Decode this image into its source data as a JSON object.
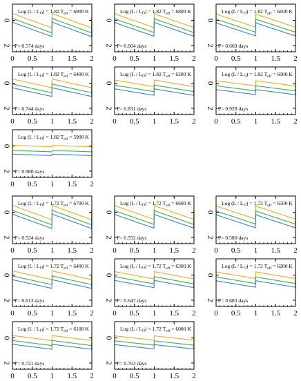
{
  "colors": {
    "orange": "#f5a623",
    "green": "#3cb043",
    "blue": "#3b7dd8"
  },
  "x_ticks": [
    "0",
    "0.5",
    "1",
    "1.5",
    "2"
  ],
  "y_ticks": [
    "0",
    "2"
  ],
  "chart_data": [
    {
      "type": "line",
      "label": "Log (L / L⊙) = 1.82 Tₑₒₒ = 6900 K",
      "title_pre": "Log (L / L",
      "title_mid": ") = 1.82 T",
      "title_sub": "eff",
      "title_post": " = 6900 K",
      "period": "P= 0.574 days",
      "amp": 1.0,
      "offsets": [
        0.0,
        0.4,
        0.7
      ],
      "xlim": [
        0,
        2
      ],
      "ylim": [
        2.5,
        -1.3
      ]
    },
    {
      "type": "line",
      "title_pre": "Log (L / L",
      "title_mid": ") = 1.82 T",
      "title_sub": "eff",
      "title_post": " = 6800 K",
      "period": "P= 0.604 days",
      "amp": 0.95,
      "offsets": [
        0.0,
        0.4,
        0.7
      ],
      "xlim": [
        0,
        2
      ],
      "ylim": [
        2.5,
        -1.3
      ]
    },
    {
      "type": "line",
      "title_pre": "Log (L / L",
      "title_mid": ") = 1.82 T",
      "title_sub": "eff",
      "title_post": " = 6600 K",
      "period": "P= 0.669 days",
      "amp": 0.9,
      "offsets": [
        0.0,
        0.4,
        0.7
      ],
      "xlim": [
        0,
        2
      ],
      "ylim": [
        2.5,
        -1.3
      ]
    },
    {
      "type": "line",
      "title_pre": "Log (L / L",
      "title_mid": ") = 1.82 T",
      "title_sub": "eff",
      "title_post": " = 6400 K",
      "period": "P= 0.744 days",
      "amp": 0.6,
      "offsets": [
        0.0,
        0.4,
        0.7
      ],
      "xlim": [
        0,
        2
      ],
      "ylim": [
        2.5,
        -1.3
      ]
    },
    {
      "type": "line",
      "title_pre": "Log (L / L",
      "title_mid": ") = 1.82 T",
      "title_sub": "eff",
      "title_post": " = 6200 K",
      "period": "P= 0.831 days",
      "amp": 0.45,
      "offsets": [
        0.0,
        0.4,
        0.7
      ],
      "xlim": [
        0,
        2
      ],
      "ylim": [
        2.5,
        -1.3
      ]
    },
    {
      "type": "line",
      "title_pre": "Log (L / L",
      "title_mid": ") = 1.82 T",
      "title_sub": "eff",
      "title_post": " = 6000 K",
      "period": "P= 0.928 days",
      "amp": 0.35,
      "offsets": [
        0.0,
        0.4,
        0.7
      ],
      "xlim": [
        0,
        2
      ],
      "ylim": [
        2.5,
        -1.3
      ]
    },
    {
      "type": "line",
      "title_pre": "Log (L / L",
      "title_mid": ") = 1.82 T",
      "title_sub": "eff",
      "title_post": " = 5900 K",
      "period": "P= 0.980 days",
      "amp": 0.1,
      "offsets": [
        0.0,
        0.4,
        0.7
      ],
      "xlim": [
        0,
        2
      ],
      "ylim": [
        2.5,
        -1.3
      ]
    },
    {
      "type": "line",
      "title_pre": "Log (L / L",
      "title_mid": ") = 1.72 T",
      "title_sub": "eff",
      "title_post": " = 6700 K",
      "period": "P= 0.524 days",
      "amp": 1.0,
      "offsets": [
        0.0,
        0.4,
        0.7
      ],
      "xlim": [
        0,
        2
      ],
      "ylim": [
        2.5,
        -1.3
      ]
    },
    {
      "type": "line",
      "title_pre": "Log (L / L",
      "title_mid": ") = 1.72 T",
      "title_sub": "eff",
      "title_post": " = 6600 K",
      "period": "P= 0.552 days",
      "amp": 0.95,
      "offsets": [
        0.0,
        0.4,
        0.7
      ],
      "xlim": [
        0,
        2
      ],
      "ylim": [
        2.5,
        -1.3
      ]
    },
    {
      "type": "line",
      "title_pre": "Log (L / L",
      "title_mid": ") = 1.72 T",
      "title_sub": "eff",
      "title_post": " = 6500 K",
      "period": "P= 0.580 days",
      "amp": 0.9,
      "offsets": [
        0.0,
        0.4,
        0.7
      ],
      "xlim": [
        0,
        2
      ],
      "ylim": [
        2.5,
        -1.3
      ]
    },
    {
      "type": "line",
      "title_pre": "Log (L / L",
      "title_mid": ") = 1.72 T",
      "title_sub": "eff",
      "title_post": " = 6400 K",
      "period": "P= 0.613 days",
      "amp": 0.6,
      "offsets": [
        0.0,
        0.4,
        0.7
      ],
      "xlim": [
        0,
        2
      ],
      "ylim": [
        2.5,
        -1.3
      ]
    },
    {
      "type": "line",
      "title_pre": "Log (L / L",
      "title_mid": ") = 1.72 T",
      "title_sub": "eff",
      "title_post": " = 6300 K",
      "period": "P= 0.647 days",
      "amp": 0.5,
      "offsets": [
        0.0,
        0.4,
        0.7
      ],
      "xlim": [
        0,
        2
      ],
      "ylim": [
        2.5,
        -1.3
      ]
    },
    {
      "type": "line",
      "title_pre": "Log (L / L",
      "title_mid": ") = 1.72 T",
      "title_sub": "eff",
      "title_post": " = 6200 K",
      "period": "P= 0.683 days",
      "amp": 0.45,
      "offsets": [
        0.0,
        0.4,
        0.7
      ],
      "xlim": [
        0,
        2
      ],
      "ylim": [
        2.5,
        -1.3
      ]
    },
    {
      "type": "line",
      "title_pre": "Log (L / L",
      "title_mid": ") = 1.72 T",
      "title_sub": "eff",
      "title_post": " = 6100 K",
      "period": "P= 0.721 days",
      "amp": 0.35,
      "offsets": [
        0.0,
        0.4,
        0.7
      ],
      "xlim": [
        0,
        2
      ],
      "ylim": [
        2.5,
        -1.3
      ]
    },
    {
      "type": "line",
      "title_pre": "Log (L / L",
      "title_mid": ") = 1.72 T",
      "title_sub": "eff",
      "title_post": " = 6000 K",
      "period": "P= 0.763 days",
      "amp": 0.3,
      "offsets": [
        0.0,
        0.4,
        0.7
      ],
      "xlim": [
        0,
        2
      ],
      "ylim": [
        2.5,
        -1.3
      ]
    }
  ]
}
